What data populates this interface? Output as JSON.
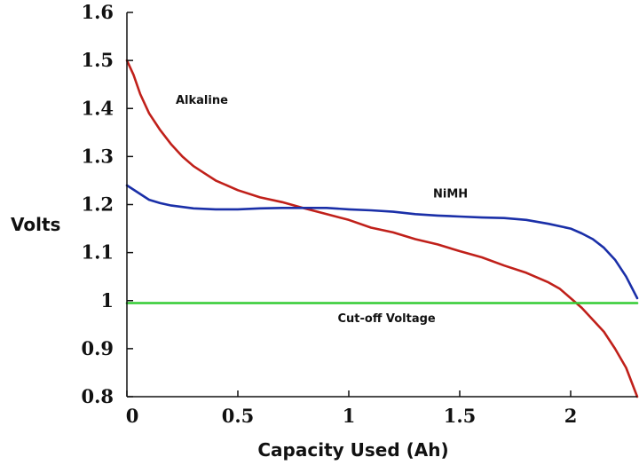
{
  "chart_data": {
    "type": "line",
    "xlabel": "Capacity Used (Ah)",
    "ylabel": "Volts",
    "xlim": [
      0,
      2.3
    ],
    "ylim": [
      0.8,
      1.6
    ],
    "x_ticks": [
      {
        "value": 0,
        "label": "0"
      },
      {
        "value": 0.5,
        "label": "0.5"
      },
      {
        "value": 1,
        "label": "1"
      },
      {
        "value": 1.5,
        "label": "1.5"
      },
      {
        "value": 2,
        "label": "2"
      }
    ],
    "y_ticks": [
      {
        "value": 0.8,
        "label": "0.8"
      },
      {
        "value": 0.9,
        "label": "0.9"
      },
      {
        "value": 1.0,
        "label": "1"
      },
      {
        "value": 1.1,
        "label": "1.1"
      },
      {
        "value": 1.2,
        "label": "1.2"
      },
      {
        "value": 1.3,
        "label": "1.3"
      },
      {
        "value": 1.4,
        "label": "1.4"
      },
      {
        "value": 1.5,
        "label": "1.5"
      },
      {
        "value": 1.6,
        "label": "1.6"
      }
    ],
    "grid": false,
    "legend": "none",
    "series": [
      {
        "name": "Alkaline",
        "color": "#c0201a",
        "points": [
          [
            0,
            1.5
          ],
          [
            0.03,
            1.47
          ],
          [
            0.06,
            1.43
          ],
          [
            0.1,
            1.39
          ],
          [
            0.15,
            1.355
          ],
          [
            0.2,
            1.325
          ],
          [
            0.25,
            1.3
          ],
          [
            0.3,
            1.28
          ],
          [
            0.35,
            1.265
          ],
          [
            0.4,
            1.25
          ],
          [
            0.5,
            1.23
          ],
          [
            0.6,
            1.215
          ],
          [
            0.7,
            1.205
          ],
          [
            0.8,
            1.192
          ],
          [
            0.9,
            1.18
          ],
          [
            1.0,
            1.168
          ],
          [
            1.1,
            1.152
          ],
          [
            1.2,
            1.142
          ],
          [
            1.3,
            1.128
          ],
          [
            1.4,
            1.117
          ],
          [
            1.5,
            1.103
          ],
          [
            1.6,
            1.09
          ],
          [
            1.7,
            1.073
          ],
          [
            1.8,
            1.058
          ],
          [
            1.9,
            1.038
          ],
          [
            1.95,
            1.025
          ],
          [
            2.0,
            1.005
          ],
          [
            2.05,
            0.985
          ],
          [
            2.1,
            0.96
          ],
          [
            2.15,
            0.935
          ],
          [
            2.2,
            0.9
          ],
          [
            2.25,
            0.86
          ],
          [
            2.3,
            0.8
          ]
        ]
      },
      {
        "name": "NiMH",
        "color": "#1a2fa8",
        "points": [
          [
            0,
            1.24
          ],
          [
            0.05,
            1.225
          ],
          [
            0.1,
            1.21
          ],
          [
            0.15,
            1.203
          ],
          [
            0.2,
            1.198
          ],
          [
            0.3,
            1.192
          ],
          [
            0.4,
            1.19
          ],
          [
            0.5,
            1.19
          ],
          [
            0.6,
            1.192
          ],
          [
            0.7,
            1.193
          ],
          [
            0.8,
            1.193
          ],
          [
            0.9,
            1.193
          ],
          [
            1.0,
            1.19
          ],
          [
            1.1,
            1.188
          ],
          [
            1.2,
            1.185
          ],
          [
            1.3,
            1.18
          ],
          [
            1.4,
            1.177
          ],
          [
            1.5,
            1.175
          ],
          [
            1.6,
            1.173
          ],
          [
            1.7,
            1.172
          ],
          [
            1.8,
            1.168
          ],
          [
            1.9,
            1.16
          ],
          [
            2.0,
            1.15
          ],
          [
            2.05,
            1.14
          ],
          [
            2.1,
            1.128
          ],
          [
            2.15,
            1.11
          ],
          [
            2.2,
            1.085
          ],
          [
            2.25,
            1.05
          ],
          [
            2.3,
            1.005
          ]
        ]
      },
      {
        "name": "Cut-off Voltage",
        "color": "#33cc33",
        "points": [
          [
            0,
            0.995
          ],
          [
            2.3,
            0.995
          ]
        ]
      }
    ],
    "annotations": [
      {
        "text": "Alkaline",
        "x": 0.22,
        "y": 1.41
      },
      {
        "text": "NiMH",
        "x": 1.38,
        "y": 1.215
      },
      {
        "text": "Cut-off Voltage",
        "x": 0.95,
        "y": 0.955
      }
    ]
  }
}
